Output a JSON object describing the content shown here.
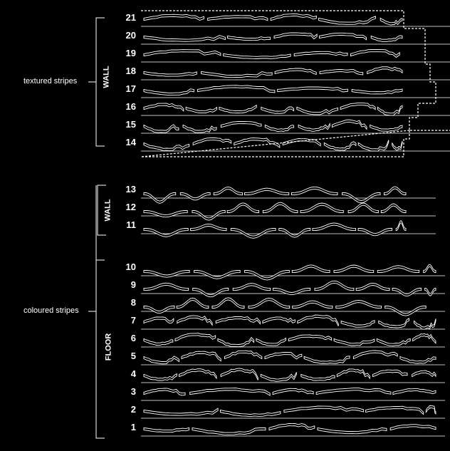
{
  "groups": [
    {
      "label": "textured stripes",
      "zone": "WALL",
      "rows": [
        "21",
        "20",
        "19",
        "18",
        "17",
        "16",
        "15",
        "14"
      ]
    },
    {
      "label": "coloured stripes",
      "zones": [
        {
          "label": "WALL",
          "rows": [
            "13",
            "12",
            "11"
          ]
        },
        {
          "label": "FLOOR",
          "rows": [
            "10",
            "9",
            "8",
            "7",
            "6",
            "5",
            "4",
            "3",
            "2",
            "1"
          ]
        }
      ]
    }
  ],
  "colors": {
    "background": "#000000",
    "lines": "#ffffff",
    "stripe_fill": "#000000"
  },
  "stripe_patterns": {
    "21": "gentle",
    "20": "gentle",
    "19": "gentle",
    "18": "gentle",
    "17": "gentle",
    "16": "wavy",
    "15": "wavy",
    "14": "wavy",
    "13": "peaked",
    "12": "peaked",
    "11": "peaked",
    "10": "peaked",
    "9": "peaked",
    "8": "peaked",
    "7": "wavy",
    "6": "wavy",
    "5": "wavy",
    "4": "wavy",
    "3": "gentle",
    "2": "gentle",
    "1": "gentle"
  }
}
